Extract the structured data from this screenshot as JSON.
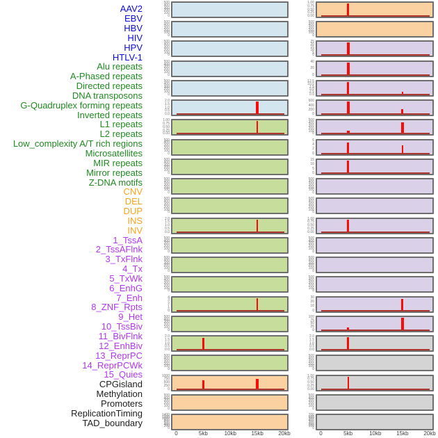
{
  "ui": {
    "colors": {
      "spike": "#fb0b05",
      "baseline": "#ad342a",
      "tick_text": "#787878",
      "axis_text": "#3d3d3d",
      "frame": "#6e6e6e",
      "background": "#ffffff"
    },
    "groups": {
      "virus": {
        "label": "#0b0be0",
        "bg": "#d3e5ee"
      },
      "repeat": {
        "label": "#1f8a1f",
        "bg": "#c6dd9b"
      },
      "sv": {
        "label": "#f6a41b",
        "bg": "#fbd1a2"
      },
      "chromatin": {
        "label": "#b336f0",
        "bg": "#dad0e7"
      },
      "other": {
        "label": "#1c1c1c",
        "bg": "#d4d4d4"
      }
    }
  },
  "chart_data": {
    "type": "line",
    "description": "44 genomic feature density tracks; small-multiple red coverage profiles in 2 columns of 22 (column-major order), window 0-20kb",
    "columns": 2,
    "rows_per_column": 22,
    "x_unit": "kb",
    "x_range": [
      0,
      20
    ],
    "x_tick_labels": [
      "0",
      "5kb",
      "10kb",
      "15kb",
      "20kb"
    ],
    "peak_note": "peaks: kb = x position, h = height fraction of y-range, w = drawn width px",
    "tracks": [
      {
        "label": "AAV2",
        "group": "virus",
        "y_ticks": [
          "0",
          "100",
          "200",
          "300",
          "400",
          "500"
        ],
        "baseline": false,
        "peaks": []
      },
      {
        "label": "EBV",
        "group": "virus",
        "y_ticks": [
          "0",
          "100",
          "200",
          "300",
          "400",
          "500"
        ],
        "baseline": false,
        "peaks": []
      },
      {
        "label": "HBV",
        "group": "virus",
        "y_ticks": [
          "0",
          "100",
          "200",
          "300",
          "400",
          "500"
        ],
        "baseline": false,
        "peaks": []
      },
      {
        "label": "HIV",
        "group": "virus",
        "y_ticks": [
          "0",
          "100",
          "200",
          "300",
          "400",
          "500"
        ],
        "baseline": false,
        "peaks": []
      },
      {
        "label": "HPV",
        "group": "virus",
        "y_ticks": [
          "0",
          "100",
          "200",
          "300",
          "400",
          "500"
        ],
        "baseline": false,
        "peaks": []
      },
      {
        "label": "HTLV-1",
        "group": "virus",
        "y_ticks": [
          "0.0",
          "0.5",
          "1.0",
          "1.5",
          "2.0"
        ],
        "baseline": true,
        "peaks": [
          {
            "kb": 15,
            "h": 1.0,
            "w": 4
          }
        ]
      },
      {
        "label": "Alu repeats",
        "group": "repeat",
        "y_ticks": [
          "0.00",
          "0.25",
          "0.50",
          "0.75",
          "1.00"
        ],
        "baseline": true,
        "peaks": [
          {
            "kb": 15,
            "h": 1.0,
            "w": 2
          }
        ]
      },
      {
        "label": "A-Phased repeats",
        "group": "repeat",
        "y_ticks": [
          "0",
          "100",
          "200",
          "300",
          "400",
          "500"
        ],
        "baseline": false,
        "peaks": []
      },
      {
        "label": "Directed repeats",
        "group": "repeat",
        "y_ticks": [
          "0",
          "100",
          "200",
          "300",
          "400",
          "500"
        ],
        "baseline": false,
        "peaks": []
      },
      {
        "label": "DNA transposons",
        "group": "repeat",
        "y_ticks": [
          "0",
          "100",
          "200",
          "300",
          "400",
          "500"
        ],
        "baseline": false,
        "peaks": []
      },
      {
        "label": "G-Quadruplex forming repeats",
        "group": "repeat",
        "y_ticks": [
          "0",
          "100",
          "200",
          "300",
          "400",
          "500"
        ],
        "baseline": false,
        "peaks": []
      },
      {
        "label": "Inverted repeats",
        "group": "repeat",
        "y_ticks": [
          "0.0",
          "0.5",
          "1.0",
          "1.5",
          "2.0"
        ],
        "baseline": true,
        "peaks": [
          {
            "kb": 15,
            "h": 1.0,
            "w": 2
          }
        ]
      },
      {
        "label": "L1 repeats",
        "group": "repeat",
        "y_ticks": [
          "0",
          "100",
          "200",
          "300",
          "400",
          "500"
        ],
        "baseline": false,
        "peaks": []
      },
      {
        "label": "L2 repeats",
        "group": "repeat",
        "y_ticks": [
          "0",
          "100",
          "200",
          "300",
          "400",
          "500"
        ],
        "baseline": false,
        "peaks": []
      },
      {
        "label": "Low_complexity A/T rich regions",
        "group": "repeat",
        "y_ticks": [
          "0",
          "100",
          "200",
          "300",
          "400",
          "500"
        ],
        "baseline": false,
        "peaks": []
      },
      {
        "label": "Microsatellites",
        "group": "repeat",
        "y_ticks": [
          "0",
          "1",
          "2",
          "3",
          "4"
        ],
        "baseline": true,
        "peaks": [
          {
            "kb": 15,
            "h": 1.0,
            "w": 2
          }
        ]
      },
      {
        "label": "MIR repeats",
        "group": "repeat",
        "y_ticks": [
          "0",
          "100",
          "200",
          "300",
          "400",
          "500"
        ],
        "baseline": false,
        "peaks": []
      },
      {
        "label": "Mirror repeats",
        "group": "repeat",
        "y_ticks": [
          "0.0",
          "0.5",
          "1.0",
          "1.5",
          "2.0"
        ],
        "baseline": true,
        "peaks": [
          {
            "kb": 5,
            "h": 0.95,
            "w": 3
          }
        ]
      },
      {
        "label": "Z-DNA motifs",
        "group": "repeat",
        "y_ticks": [
          "0",
          "100",
          "200",
          "300",
          "400",
          "500"
        ],
        "baseline": false,
        "peaks": []
      },
      {
        "label": "CNV",
        "group": "sv",
        "y_ticks": [
          "0",
          "250",
          "500",
          "750",
          "1000"
        ],
        "baseline": true,
        "peaks": [
          {
            "kb": 5,
            "h": 0.7,
            "w": 3
          },
          {
            "kb": 15,
            "h": 0.78,
            "w": 4
          }
        ]
      },
      {
        "label": "DEL",
        "group": "sv",
        "y_ticks": [
          "0",
          "100",
          "200",
          "300",
          "400",
          "500"
        ],
        "baseline": false,
        "peaks": []
      },
      {
        "label": "DUP",
        "group": "sv",
        "y_ticks": [
          "0",
          "200",
          "400",
          "600",
          "800",
          "1000",
          "1200",
          "1400"
        ],
        "baseline": false,
        "peaks": []
      },
      {
        "label": "INS",
        "group": "sv",
        "y_ticks": [
          "0.00",
          "0.25",
          "0.50",
          "0.75",
          "1.00"
        ],
        "baseline": true,
        "peaks": [
          {
            "kb": 5,
            "h": 1.0,
            "w": 3
          }
        ]
      },
      {
        "label": "INV",
        "group": "sv",
        "y_ticks": [
          "0",
          "100",
          "200",
          "300",
          "400",
          "500"
        ],
        "baseline": false,
        "peaks": []
      },
      {
        "label": "1_TssA",
        "group": "chromatin",
        "y_ticks": [
          "0",
          "5",
          "10",
          "15",
          "20",
          "25"
        ],
        "baseline": true,
        "peaks": [
          {
            "kb": 5,
            "h": 1.0,
            "w": 4
          }
        ]
      },
      {
        "label": "2_TssAFlnk",
        "group": "chromatin",
        "y_ticks": [
          "0",
          "20",
          "40"
        ],
        "baseline": true,
        "peaks": [
          {
            "kb": 5,
            "h": 1.0,
            "w": 4
          }
        ]
      },
      {
        "label": "3_TxFlnk",
        "group": "chromatin",
        "y_ticks": [
          "0.0",
          "2.5",
          "5.0",
          "7.5",
          "10.0",
          "12.5"
        ],
        "baseline": true,
        "peaks": [
          {
            "kb": 5,
            "h": 1.0,
            "w": 3
          },
          {
            "kb": 15,
            "h": 0.2,
            "w": 2
          }
        ]
      },
      {
        "label": "4_Tx",
        "group": "chromatin",
        "y_ticks": [
          "0",
          "200",
          "400",
          "600"
        ],
        "baseline": true,
        "peaks": [
          {
            "kb": 5,
            "h": 1.0,
            "w": 4
          },
          {
            "kb": 15,
            "h": 0.38,
            "w": 3
          }
        ]
      },
      {
        "label": "5_TxWk",
        "group": "chromatin",
        "y_ticks": [
          "0",
          "100",
          "200",
          "300",
          "400",
          "500"
        ],
        "baseline": true,
        "peaks": [
          {
            "kb": 5,
            "h": 0.18,
            "w": 4
          },
          {
            "kb": 15,
            "h": 0.92,
            "w": 4
          }
        ]
      },
      {
        "label": "6_EnhG",
        "group": "chromatin",
        "y_ticks": [
          "0",
          "2",
          "4",
          "6"
        ],
        "baseline": true,
        "peaks": [
          {
            "kb": 5,
            "h": 0.88,
            "w": 3
          },
          {
            "kb": 15,
            "h": 0.62,
            "w": 2
          }
        ]
      },
      {
        "label": "7_Enh",
        "group": "chromatin",
        "y_ticks": [
          "0",
          "5",
          "10",
          "15"
        ],
        "baseline": true,
        "peaks": [
          {
            "kb": 5,
            "h": 1.0,
            "w": 3
          }
        ]
      },
      {
        "label": "8_ZNF_Rpts",
        "group": "chromatin",
        "y_ticks": [
          "0",
          "100",
          "200",
          "300",
          "400",
          "500"
        ],
        "baseline": false,
        "peaks": []
      },
      {
        "label": "9_Het",
        "group": "chromatin",
        "y_ticks": [
          "0",
          "100",
          "200",
          "300",
          "400",
          "500"
        ],
        "baseline": false,
        "peaks": []
      },
      {
        "label": "10_TssBiv",
        "group": "chromatin",
        "y_ticks": [
          "0.00",
          "0.25",
          "0.50",
          "0.75",
          "1.00"
        ],
        "baseline": true,
        "peaks": [
          {
            "kb": 5,
            "h": 1.0,
            "w": 3
          }
        ]
      },
      {
        "label": "11_BivFlnk",
        "group": "chromatin",
        "y_ticks": [
          "0",
          "100",
          "200",
          "300",
          "400",
          "500"
        ],
        "baseline": false,
        "peaks": []
      },
      {
        "label": "12_EnhBiv",
        "group": "chromatin",
        "y_ticks": [
          "0",
          "100",
          "200",
          "300",
          "400",
          "500"
        ],
        "baseline": false,
        "peaks": []
      },
      {
        "label": "13_ReprPC",
        "group": "chromatin",
        "y_ticks": [
          "0",
          "100",
          "200",
          "300",
          "400",
          "500"
        ],
        "baseline": false,
        "peaks": []
      },
      {
        "label": "14_ReprPCWk",
        "group": "chromatin",
        "y_ticks": [
          "0",
          "10",
          "20",
          "30"
        ],
        "baseline": true,
        "peaks": [
          {
            "kb": 15,
            "h": 0.9,
            "w": 3
          }
        ]
      },
      {
        "label": "15_Quies",
        "group": "chromatin",
        "y_ticks": [
          "0",
          "25",
          "50",
          "75",
          "100"
        ],
        "baseline": true,
        "peaks": [
          {
            "kb": 5,
            "h": 0.16,
            "w": 3
          },
          {
            "kb": 15,
            "h": 1.0,
            "w": 4
          }
        ]
      },
      {
        "label": "CPGisland",
        "group": "other",
        "y_ticks": [
          "0.0",
          "0.5",
          "1.0",
          "1.5",
          "2.0"
        ],
        "baseline": true,
        "peaks": [
          {
            "kb": 5,
            "h": 1.0,
            "w": 3
          }
        ]
      },
      {
        "label": "Methylation",
        "group": "other",
        "y_ticks": [
          "0",
          "100",
          "200",
          "300",
          "400",
          "500"
        ],
        "baseline": false,
        "peaks": []
      },
      {
        "label": "Promoters",
        "group": "other",
        "y_ticks": [
          "0.00",
          "0.25",
          "0.50",
          "0.75",
          "1.00"
        ],
        "baseline": true,
        "peaks": [
          {
            "kb": 5,
            "h": 1.0,
            "w": 2
          }
        ]
      },
      {
        "label": "ReplicationTiming",
        "group": "other",
        "y_ticks": [
          "0",
          "100",
          "200",
          "300",
          "400",
          "500"
        ],
        "baseline": false,
        "peaks": []
      },
      {
        "label": "TAD_boundary",
        "group": "other",
        "y_ticks": [
          "0",
          "100",
          "200",
          "300",
          "400",
          "500",
          "600",
          "700"
        ],
        "baseline": false,
        "peaks": []
      }
    ]
  }
}
